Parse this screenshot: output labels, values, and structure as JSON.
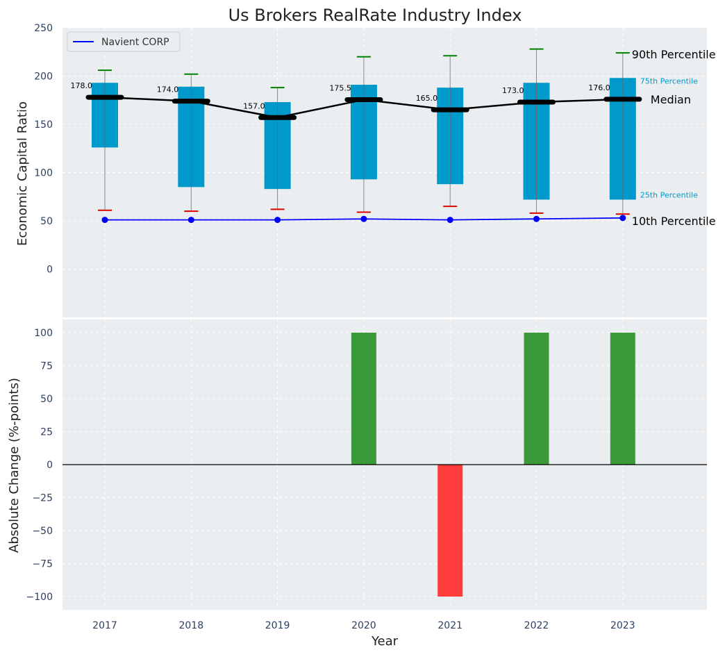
{
  "chart_data": {
    "title": "Us Brokers RealRate Industry Index",
    "xlabel": "Year",
    "categories": [
      "2017",
      "2018",
      "2019",
      "2020",
      "2021",
      "2022",
      "2023"
    ],
    "top_panel": {
      "type": "box",
      "ylabel": "Economic Capital Ratio",
      "ylim": [
        -50,
        250
      ],
      "yticks": [
        0,
        50,
        100,
        150,
        200,
        250
      ],
      "p10": [
        61,
        60,
        62,
        59,
        65,
        58,
        57
      ],
      "p25": [
        126,
        85,
        83,
        93,
        88,
        72,
        72
      ],
      "median": [
        178.0,
        174.0,
        157.0,
        175.5,
        165.0,
        173.0,
        176.0
      ],
      "p75": [
        193,
        189,
        173,
        191,
        188,
        193,
        198
      ],
      "p90": [
        206,
        202,
        188,
        220,
        221,
        228,
        224
      ],
      "median_labels": [
        "178.0",
        "174.0",
        "157.0",
        "175.5",
        "165.0",
        "173.0",
        "176.0"
      ],
      "company": {
        "name": "Navient CORP",
        "values": [
          51,
          51,
          51,
          52,
          51,
          52,
          53
        ]
      },
      "annotations": {
        "p90": "90th Percentile",
        "p75": "75th Percentile",
        "median": "Median",
        "p25": "25th Percentile",
        "p10": "10th Percentile"
      },
      "legend_position": "upper-left",
      "grid": true
    },
    "bottom_panel": {
      "type": "bar",
      "ylabel": "Absolute Change (%-points)",
      "ylim": [
        -110,
        110
      ],
      "yticks": [
        -100,
        -75,
        -50,
        -25,
        0,
        25,
        50,
        75,
        100
      ],
      "values": [
        0,
        0,
        0,
        100,
        -100,
        100,
        100
      ],
      "grid": true
    },
    "colors": {
      "box": "#0099cc",
      "median": "#000000",
      "company": "#0000ff",
      "p90_cap": "#008000",
      "p10_cap": "#dd0000",
      "positive": "#3a9a3a",
      "negative": "#ff3c3c",
      "panel_bg": "#eaeef0",
      "annotation_75_25": "#0099cc"
    }
  }
}
